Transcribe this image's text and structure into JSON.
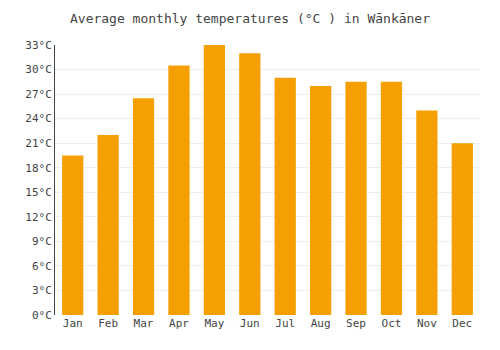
{
  "chart_data": {
    "type": "bar",
    "title": "Average monthly temperatures (°C ) in Wānkāner",
    "categories": [
      "Jan",
      "Feb",
      "Mar",
      "Apr",
      "May",
      "Jun",
      "Jul",
      "Aug",
      "Sep",
      "Oct",
      "Nov",
      "Dec"
    ],
    "values": [
      19.5,
      22.0,
      26.5,
      30.5,
      33.0,
      32.0,
      29.0,
      28.0,
      28.5,
      28.5,
      25.0,
      21.0
    ],
    "color": "#F5A000",
    "ylim": [
      0,
      33
    ],
    "yticks": [
      {
        "value": 0,
        "label": "0°C"
      },
      {
        "value": 3,
        "label": "3°C"
      },
      {
        "value": 6,
        "label": "6°C"
      },
      {
        "value": 9,
        "label": "9°C"
      },
      {
        "value": 12,
        "label": "12°C"
      },
      {
        "value": 15,
        "label": "15°C"
      },
      {
        "value": 18,
        "label": "18°C"
      },
      {
        "value": 21,
        "label": "21°C"
      },
      {
        "value": 24,
        "label": "24°C"
      },
      {
        "value": 27,
        "label": "27°C"
      },
      {
        "value": 30,
        "label": "30°C"
      },
      {
        "value": 33,
        "label": "33°C"
      }
    ],
    "grid": true
  }
}
